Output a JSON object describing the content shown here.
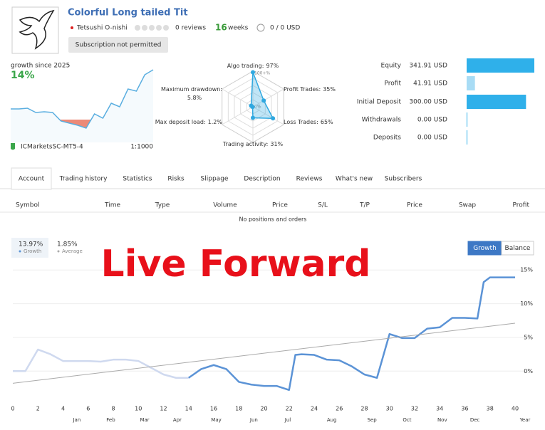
{
  "header": {
    "title": "Colorful Long tailed Tit",
    "author": "Tetsushi O-nishi",
    "reviews": "0 reviews",
    "weeks_value": "16",
    "weeks_label": "weeks",
    "subscribers": "0 / 0 USD",
    "button": "Subscription not permitted"
  },
  "summary": {
    "growth_label": "growth since 2025",
    "growth": "14%",
    "broker": "ICMarketsSC-MT5-4",
    "leverage": "1:1000"
  },
  "tabs": [
    "Account",
    "Trading history",
    "Statistics",
    "Risks",
    "Slippage",
    "Description",
    "Reviews",
    "What's new",
    "Subscribers"
  ],
  "table": {
    "columns": [
      "Symbol",
      "Time",
      "Type",
      "Volume",
      "Price",
      "S/L",
      "T/P",
      "Price",
      "Swap",
      "Profit"
    ],
    "empty": "No positions and orders"
  },
  "overlay": "Live Forward",
  "chart_data": [
    {
      "type": "sparkline",
      "color": "#5aaee0",
      "values": [
        3,
        3,
        3.2,
        2,
        2.2,
        2,
        -0.4,
        -1,
        -1.6,
        -2.4,
        1.6,
        0.4,
        4.6,
        3.6,
        8.6,
        8,
        12.6,
        14
      ]
    },
    {
      "type": "radar",
      "color": "#2fa8e0",
      "categories": [
        "Algo trading:",
        "Profit Trades:",
        "Loss Trades:",
        "Trading activity:",
        "Max deposit load:",
        "Maximum drawdown:"
      ],
      "values": [
        97,
        35,
        65,
        31,
        1.2,
        5.8
      ],
      "value_labels": [
        "97%",
        "35%",
        "65%",
        "31%",
        "1.2%",
        "5.8%"
      ],
      "rlim": [
        0,
        100
      ],
      "rticks": [
        {
          "value": 0,
          "label": "0%"
        },
        {
          "value": 100,
          "label": "100+%"
        }
      ]
    },
    {
      "type": "hbar",
      "categories": [
        "Equity",
        "Profit",
        "Initial Deposit",
        "Withdrawals",
        "Deposits"
      ],
      "values": [
        341.91,
        41.91,
        300.0,
        0.0,
        0.0
      ],
      "value_labels": [
        "341.91 USD",
        "41.91 USD",
        "300.00 USD",
        "0.00 USD",
        "0.00 USD"
      ],
      "colors": [
        "#2fb0ea",
        "#a8dcf5",
        "#2fb0ea",
        "#2fb0ea",
        "#2fb0ea"
      ]
    },
    {
      "type": "line",
      "xlim": [
        0,
        41.25
      ],
      "ylim": [
        -4.3,
        16.5
      ],
      "xticks": [
        0,
        2,
        4,
        6,
        8,
        10,
        12,
        14,
        16,
        18,
        20,
        22,
        24,
        26,
        28,
        30,
        32,
        34,
        36,
        38,
        40
      ],
      "yticks": [
        {
          "value": 0,
          "label": "0%"
        },
        {
          "value": 5,
          "label": "5%"
        },
        {
          "value": 10,
          "label": "10%"
        },
        {
          "value": 15,
          "label": "15%"
        }
      ],
      "month_ticks": [
        {
          "value": 5.1,
          "label": "Jan"
        },
        {
          "value": 7.8,
          "label": "Feb"
        },
        {
          "value": 10.5,
          "label": "Mar"
        },
        {
          "value": 13.1,
          "label": "Apr"
        },
        {
          "value": 16.2,
          "label": "May"
        },
        {
          "value": 19.2,
          "label": "Jun"
        },
        {
          "value": 21.9,
          "label": "Jul"
        },
        {
          "value": 25.4,
          "label": "Aug"
        },
        {
          "value": 28.6,
          "label": "Sep"
        },
        {
          "value": 31.4,
          "label": "Oct"
        },
        {
          "value": 34.2,
          "label": "Nov"
        },
        {
          "value": 36.8,
          "label": "Dec"
        }
      ],
      "xlabel": "Year",
      "grid": true,
      "stats": [
        {
          "value": "13.97%",
          "label": "Growth"
        },
        {
          "value": "1.85%",
          "label": "Average"
        }
      ],
      "buttons": [
        "Growth",
        "Balance"
      ],
      "series": [
        {
          "color": "#cfd9ef",
          "x": [
            0,
            1,
            2,
            3,
            4,
            6,
            7,
            8,
            9,
            10,
            11,
            12,
            13,
            14
          ],
          "values": [
            0,
            0,
            3.2,
            2.5,
            1.5,
            1.5,
            1.4,
            1.7,
            1.7,
            1.5,
            0.5,
            -0.5,
            -1.0,
            -1.0
          ]
        },
        {
          "color": "#5b93d6",
          "x": [
            14,
            15,
            16,
            17,
            18,
            19,
            20,
            21,
            22,
            22.5,
            23,
            24,
            25,
            26,
            27,
            28,
            29,
            30,
            31,
            32,
            33,
            34,
            35,
            36,
            37,
            37.5,
            38,
            39,
            40
          ],
          "values": [
            -1.0,
            0.3,
            0.9,
            0.3,
            -1.6,
            -2.0,
            -2.2,
            -2.2,
            -2.8,
            2.4,
            2.5,
            2.4,
            1.7,
            1.6,
            0.7,
            -0.5,
            -1.0,
            5.5,
            4.9,
            4.9,
            6.3,
            6.5,
            7.9,
            7.9,
            7.8,
            13.2,
            13.9,
            13.9,
            13.9
          ]
        },
        {
          "color": "#aaaaaa",
          "x": [
            0,
            40
          ],
          "values": [
            -1.8,
            7.1
          ]
        }
      ]
    }
  ]
}
